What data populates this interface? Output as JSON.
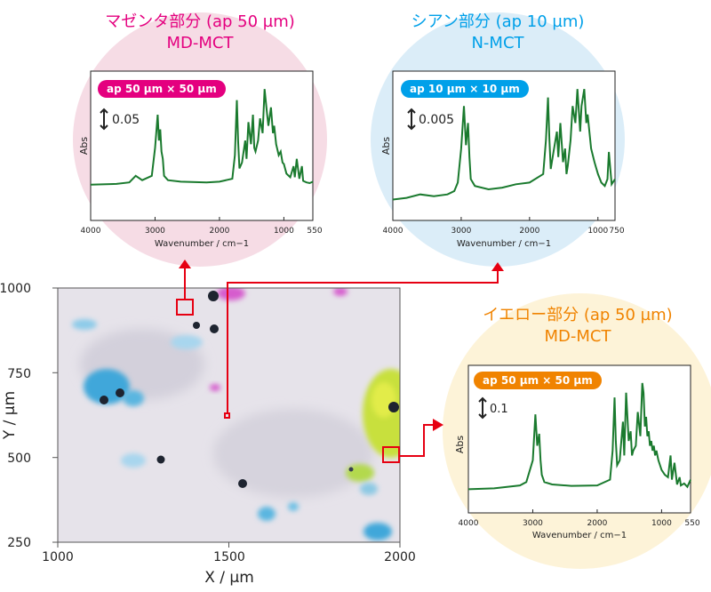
{
  "colors": {
    "magenta": "#e4007f",
    "cyan": "#00a0e9",
    "orange": "#f08300",
    "spectrum_line": "#1a7a2e",
    "marker_red": "#e60012",
    "circle_pink": "#f6dce5",
    "circle_blue": "#dbedf8",
    "circle_yellow": "#fdf3d8"
  },
  "panels": {
    "magenta": {
      "title": "マゼンタ部分 (ap 50 µm)",
      "subtitle": "MD-MCT",
      "badge": "ap 50 µm × 50 µm",
      "scale": "0.05",
      "ylabel": "Abs",
      "xlabel": "Wavenumber / cm−1",
      "ticks": [
        "4000",
        "3000",
        "2000",
        "1000",
        "550"
      ]
    },
    "cyan": {
      "title": "シアン部分 (ap 10 µm)",
      "subtitle": "N-MCT",
      "badge": "ap 10 µm × 10 µm",
      "scale": "0.005",
      "ylabel": "Abs",
      "xlabel": "Wavenumber / cm−1",
      "ticks": [
        "4000",
        "3000",
        "2000",
        "1000",
        "750"
      ]
    },
    "yellow": {
      "title": "イエロー部分 (ap 50 µm)",
      "subtitle": "MD-MCT",
      "badge": "ap 50 µm × 50 µm",
      "scale": "0.1",
      "ylabel": "Abs",
      "xlabel": "Wavenumber / cm−1",
      "ticks": [
        "4000",
        "3000",
        "2000",
        "1000",
        "550"
      ]
    }
  },
  "map": {
    "xlabel": "X / µm",
    "ylabel": "Y / µm",
    "xticks": [
      "1000",
      "1500",
      "2000"
    ],
    "yticks": [
      "1000",
      "750",
      "500",
      "250"
    ]
  },
  "chart_data": [
    {
      "type": "line",
      "name": "magenta-spectrum",
      "xlabel": "Wavenumber / cm−1",
      "ylabel": "Abs",
      "xlim": [
        4000,
        550
      ],
      "scale_bar": 0.05,
      "x": [
        4000,
        3600,
        3400,
        3300,
        3200,
        3050,
        3000,
        2960,
        2940,
        2920,
        2900,
        2880,
        2860,
        2800,
        2600,
        2200,
        2000,
        1800,
        1760,
        1730,
        1710,
        1690,
        1650,
        1600,
        1580,
        1550,
        1510,
        1480,
        1460,
        1440,
        1400,
        1370,
        1330,
        1300,
        1260,
        1240,
        1200,
        1170,
        1150,
        1120,
        1080,
        1050,
        1020,
        1000,
        960,
        900,
        850,
        830,
        800,
        760,
        720,
        700,
        650,
        600,
        550
      ],
      "y": [
        0.0,
        0.001,
        0.003,
        0.012,
        0.006,
        0.012,
        0.05,
        0.095,
        0.06,
        0.075,
        0.045,
        0.035,
        0.012,
        0.006,
        0.004,
        0.003,
        0.004,
        0.008,
        0.04,
        0.115,
        0.06,
        0.022,
        0.03,
        0.06,
        0.035,
        0.085,
        0.055,
        0.095,
        0.05,
        0.045,
        0.06,
        0.09,
        0.07,
        0.13,
        0.095,
        0.08,
        0.105,
        0.07,
        0.08,
        0.055,
        0.04,
        0.045,
        0.03,
        0.028,
        0.015,
        0.01,
        0.025,
        0.01,
        0.035,
        0.008,
        0.025,
        0.005,
        0.003,
        0.002,
        0.004
      ]
    },
    {
      "type": "line",
      "name": "cyan-spectrum",
      "xlabel": "Wavenumber / cm−1",
      "ylabel": "Abs",
      "xlim": [
        4000,
        750
      ],
      "scale_bar": 0.005,
      "x": [
        4000,
        3800,
        3600,
        3400,
        3200,
        3100,
        3050,
        3000,
        2960,
        2930,
        2900,
        2880,
        2860,
        2800,
        2600,
        2400,
        2200,
        2000,
        1800,
        1760,
        1730,
        1710,
        1690,
        1650,
        1600,
        1580,
        1550,
        1510,
        1480,
        1460,
        1440,
        1400,
        1370,
        1330,
        1300,
        1260,
        1240,
        1200,
        1170,
        1150,
        1100,
        1050,
        1000,
        950,
        900,
        860,
        840,
        800,
        750
      ],
      "y": [
        0.0,
        0.0001,
        0.0003,
        0.0002,
        0.0003,
        0.0005,
        0.001,
        0.003,
        0.0055,
        0.0032,
        0.0045,
        0.0025,
        0.0012,
        0.0008,
        0.0006,
        0.0007,
        0.0009,
        0.001,
        0.0015,
        0.0035,
        0.006,
        0.0035,
        0.0018,
        0.0028,
        0.004,
        0.0025,
        0.0045,
        0.0022,
        0.003,
        0.0015,
        0.002,
        0.0035,
        0.0055,
        0.0045,
        0.0065,
        0.004,
        0.0055,
        0.0065,
        0.0045,
        0.005,
        0.003,
        0.0022,
        0.0015,
        0.001,
        0.0008,
        0.0012,
        0.0028,
        0.0009,
        0.0012
      ]
    },
    {
      "type": "line",
      "name": "yellow-spectrum",
      "xlabel": "Wavenumber / cm−1",
      "ylabel": "Abs",
      "xlim": [
        4000,
        550
      ],
      "scale_bar": 0.1,
      "x": [
        4000,
        3600,
        3400,
        3200,
        3100,
        3000,
        2960,
        2930,
        2900,
        2880,
        2860,
        2820,
        2700,
        2400,
        2000,
        1800,
        1760,
        1730,
        1710,
        1690,
        1650,
        1600,
        1580,
        1550,
        1510,
        1480,
        1460,
        1440,
        1400,
        1370,
        1330,
        1300,
        1280,
        1260,
        1240,
        1220,
        1200,
        1180,
        1160,
        1140,
        1120,
        1100,
        1080,
        1050,
        1000,
        950,
        900,
        860,
        840,
        800,
        760,
        720,
        700,
        650,
        600,
        550
      ],
      "y": [
        0.0,
        0.002,
        0.005,
        0.008,
        0.015,
        0.06,
        0.155,
        0.09,
        0.115,
        0.06,
        0.03,
        0.015,
        0.01,
        0.007,
        0.008,
        0.02,
        0.08,
        0.19,
        0.1,
        0.05,
        0.06,
        0.14,
        0.07,
        0.2,
        0.1,
        0.12,
        0.07,
        0.08,
        0.09,
        0.16,
        0.11,
        0.22,
        0.2,
        0.13,
        0.15,
        0.11,
        0.12,
        0.09,
        0.1,
        0.08,
        0.09,
        0.07,
        0.08,
        0.06,
        0.04,
        0.03,
        0.025,
        0.07,
        0.02,
        0.055,
        0.01,
        0.025,
        0.008,
        0.012,
        0.005,
        0.02
      ]
    }
  ]
}
